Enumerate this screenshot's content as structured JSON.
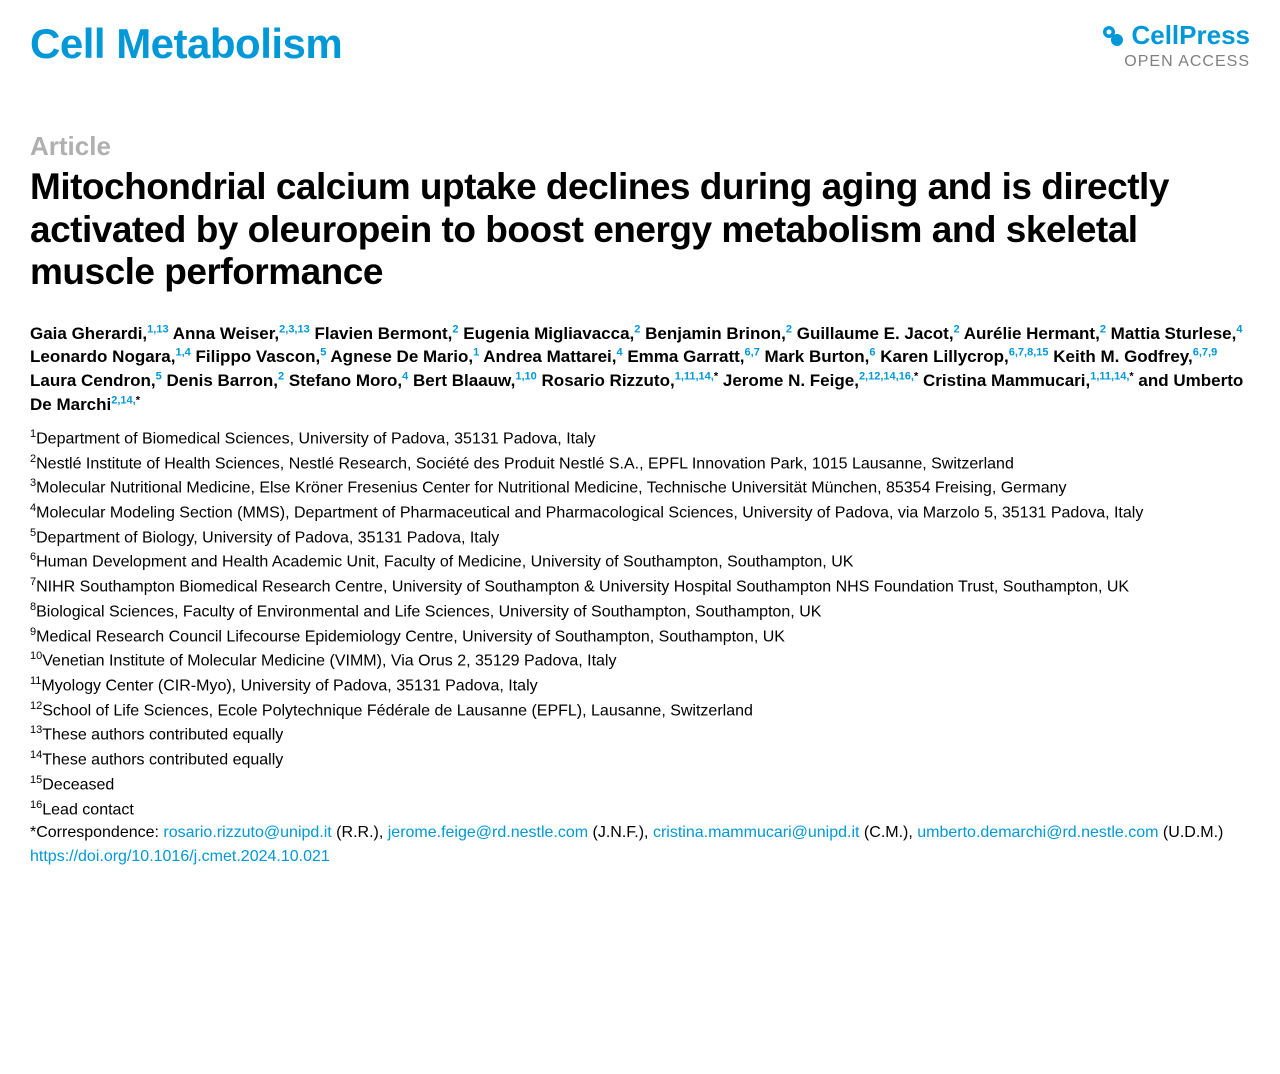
{
  "header": {
    "journal": "Cell Metabolism",
    "publisher": "CellPress",
    "access": "OPEN ACCESS"
  },
  "colors": {
    "brand": "#0098d8",
    "label_gray": "#b0b0b0",
    "access_gray": "#808080",
    "text": "#000000",
    "background": "#ffffff"
  },
  "typography": {
    "journal_fontsize": 42,
    "title_fontsize": 37,
    "article_label_fontsize": 26,
    "authors_fontsize": 17,
    "affil_fontsize": 16
  },
  "article": {
    "label": "Article",
    "title": "Mitochondrial calcium uptake declines during aging and is directly activated by oleuropein to boost energy metabolism and skeletal muscle performance"
  },
  "authors": [
    {
      "name": "Gaia Gherardi,",
      "sup": "1,13"
    },
    {
      "name": "Anna Weiser,",
      "sup": "2,3,13"
    },
    {
      "name": "Flavien Bermont,",
      "sup": "2"
    },
    {
      "name": "Eugenia Migliavacca,",
      "sup": "2"
    },
    {
      "name": "Benjamin Brinon,",
      "sup": "2"
    },
    {
      "name": "Guillaume E. Jacot,",
      "sup": "2"
    },
    {
      "name": "Aurélie Hermant,",
      "sup": "2"
    },
    {
      "name": "Mattia Sturlese,",
      "sup": "4"
    },
    {
      "name": "Leonardo Nogara,",
      "sup": "1,4"
    },
    {
      "name": "Filippo Vascon,",
      "sup": "5"
    },
    {
      "name": "Agnese De Mario,",
      "sup": "1"
    },
    {
      "name": "Andrea Mattarei,",
      "sup": "4"
    },
    {
      "name": "Emma Garratt,",
      "sup": "6,7"
    },
    {
      "name": "Mark Burton,",
      "sup": "6"
    },
    {
      "name": "Karen Lillycrop,",
      "sup": "6,7,8,15"
    },
    {
      "name": "Keith M. Godfrey,",
      "sup": "6,7,9"
    },
    {
      "name": "Laura Cendron,",
      "sup": "5"
    },
    {
      "name": "Denis Barron,",
      "sup": "2"
    },
    {
      "name": "Stefano Moro,",
      "sup": "4"
    },
    {
      "name": "Bert Blaauw,",
      "sup": "1,10"
    },
    {
      "name": "Rosario Rizzuto,",
      "sup": "1,11,14,",
      "star": true
    },
    {
      "name": "Jerome N. Feige,",
      "sup": "2,12,14,16,",
      "star": true
    },
    {
      "name": "Cristina Mammucari,",
      "sup": "1,11,14,",
      "star": true
    },
    {
      "name": "and Umberto De Marchi",
      "sup": "2,14,",
      "star": true
    }
  ],
  "affiliations": [
    {
      "num": "1",
      "text": "Department of Biomedical Sciences, University of Padova, 35131 Padova, Italy"
    },
    {
      "num": "2",
      "text": "Nestlé Institute of Health Sciences, Nestlé Research, Société des Produit Nestlé S.A., EPFL Innovation Park, 1015 Lausanne, Switzerland"
    },
    {
      "num": "3",
      "text": "Molecular Nutritional Medicine, Else Kröner Fresenius Center for Nutritional Medicine, Technische Universität München, 85354 Freising, Germany"
    },
    {
      "num": "4",
      "text": "Molecular Modeling Section (MMS), Department of Pharmaceutical and Pharmacological Sciences, University of Padova, via Marzolo 5, 35131 Padova, Italy"
    },
    {
      "num": "5",
      "text": "Department of Biology, University of Padova, 35131 Padova, Italy"
    },
    {
      "num": "6",
      "text": "Human Development and Health Academic Unit, Faculty of Medicine, University of Southampton, Southampton, UK"
    },
    {
      "num": "7",
      "text": "NIHR Southampton Biomedical Research Centre, University of Southampton & University Hospital Southampton NHS Foundation Trust, Southampton, UK"
    },
    {
      "num": "8",
      "text": "Biological Sciences, Faculty of Environmental and Life Sciences, University of Southampton, Southampton, UK"
    },
    {
      "num": "9",
      "text": "Medical Research Council Lifecourse Epidemiology Centre, University of Southampton, Southampton, UK"
    },
    {
      "num": "10",
      "text": "Venetian Institute of Molecular Medicine (VIMM), Via Orus 2, 35129 Padova, Italy"
    },
    {
      "num": "11",
      "text": "Myology Center (CIR-Myo), University of Padova, 35131 Padova, Italy"
    },
    {
      "num": "12",
      "text": "School of Life Sciences, Ecole Polytechnique Fédérale de Lausanne (EPFL), Lausanne, Switzerland"
    },
    {
      "num": "13",
      "text": "These authors contributed equally"
    },
    {
      "num": "14",
      "text": "These authors contributed equally"
    },
    {
      "num": "15",
      "text": "Deceased"
    },
    {
      "num": "16",
      "text": "Lead contact"
    }
  ],
  "correspondence": {
    "label": "*Correspondence: ",
    "contacts": [
      {
        "email": "rosario.rizzuto@unipd.it",
        "initials": " (R.R.), "
      },
      {
        "email": "jerome.feige@rd.nestle.com",
        "initials": " (J.N.F.), "
      },
      {
        "email": "cristina.mammucari@unipd.it",
        "initials": " (C.M.), "
      },
      {
        "email": "umberto.demarchi@rd.nestle.com",
        "initials": " (U.D.M.)"
      }
    ]
  },
  "doi": "https://doi.org/10.1016/j.cmet.2024.10.021"
}
